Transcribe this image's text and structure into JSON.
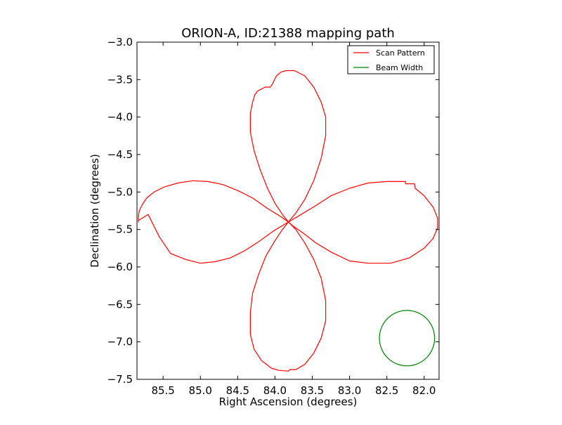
{
  "chart_data": {
    "type": "line",
    "title": "ORION-A, ID:21388 mapping path",
    "xlabel": "Right Ascension (degrees)",
    "ylabel": "Declination (degrees)",
    "xlim": [
      85.85,
      81.8
    ],
    "ylim": [
      -7.5,
      -3.0
    ],
    "x_inverted": true,
    "grid": false,
    "legend_position": "top-right",
    "xticks": [
      85.5,
      85.0,
      84.5,
      84.0,
      83.5,
      83.0,
      82.5,
      82.0
    ],
    "xtick_labels": [
      "85.5",
      "85.0",
      "84.5",
      "84.0",
      "83.5",
      "83.0",
      "82.5",
      "82.0"
    ],
    "yticks": [
      -3.0,
      -3.5,
      -4.0,
      -4.5,
      -5.0,
      -5.5,
      -6.0,
      -6.5,
      -7.0,
      -7.5
    ],
    "ytick_labels": [
      "−3.0",
      "−3.5",
      "−4.0",
      "−4.5",
      "−5.0",
      "−5.5",
      "−6.0",
      "−6.5",
      "−7.0",
      "−7.5"
    ],
    "series": [
      {
        "name": "Scan Pattern",
        "color": "#ff0000",
        "points": [
          [
            83.82,
            -5.4
          ],
          [
            83.9,
            -5.3
          ],
          [
            84.0,
            -5.15
          ],
          [
            84.1,
            -4.95
          ],
          [
            84.2,
            -4.7
          ],
          [
            84.28,
            -4.45
          ],
          [
            84.33,
            -4.2
          ],
          [
            84.33,
            -3.95
          ],
          [
            84.3,
            -3.8
          ],
          [
            84.27,
            -3.7
          ],
          [
            84.23,
            -3.65
          ],
          [
            84.13,
            -3.6
          ],
          [
            84.06,
            -3.6
          ],
          [
            84.03,
            -3.55
          ],
          [
            83.98,
            -3.45
          ],
          [
            83.92,
            -3.4
          ],
          [
            83.85,
            -3.38
          ],
          [
            83.74,
            -3.38
          ],
          [
            83.6,
            -3.45
          ],
          [
            83.48,
            -3.6
          ],
          [
            83.38,
            -3.8
          ],
          [
            83.32,
            -4.0
          ],
          [
            83.32,
            -4.25
          ],
          [
            83.38,
            -4.55
          ],
          [
            83.48,
            -4.85
          ],
          [
            83.6,
            -5.1
          ],
          [
            83.72,
            -5.28
          ],
          [
            83.82,
            -5.4
          ],
          [
            83.9,
            -5.5
          ],
          [
            84.0,
            -5.65
          ],
          [
            84.12,
            -5.85
          ],
          [
            84.22,
            -6.1
          ],
          [
            84.3,
            -6.35
          ],
          [
            84.33,
            -6.6
          ],
          [
            84.33,
            -6.9
          ],
          [
            84.28,
            -7.1
          ],
          [
            84.18,
            -7.25
          ],
          [
            84.05,
            -7.35
          ],
          [
            83.95,
            -7.38
          ],
          [
            83.82,
            -7.39
          ],
          [
            83.8,
            -7.37
          ],
          [
            83.72,
            -7.37
          ],
          [
            83.6,
            -7.3
          ],
          [
            83.48,
            -7.15
          ],
          [
            83.38,
            -6.95
          ],
          [
            83.32,
            -6.72
          ],
          [
            83.32,
            -6.45
          ],
          [
            83.38,
            -6.15
          ],
          [
            83.48,
            -5.9
          ],
          [
            83.6,
            -5.68
          ],
          [
            83.72,
            -5.5
          ],
          [
            83.82,
            -5.4
          ],
          [
            83.92,
            -5.33
          ],
          [
            84.1,
            -5.22
          ],
          [
            84.3,
            -5.08
          ],
          [
            84.5,
            -4.98
          ],
          [
            84.7,
            -4.9
          ],
          [
            84.9,
            -4.86
          ],
          [
            85.1,
            -4.85
          ],
          [
            85.3,
            -4.88
          ],
          [
            85.48,
            -4.93
          ],
          [
            85.62,
            -5.0
          ],
          [
            85.72,
            -5.08
          ],
          [
            85.78,
            -5.17
          ],
          [
            85.82,
            -5.25
          ],
          [
            85.83,
            -5.32
          ],
          [
            85.83,
            -5.4
          ],
          [
            85.83,
            -5.38
          ],
          [
            85.7,
            -5.3
          ],
          [
            85.65,
            -5.4
          ],
          [
            85.55,
            -5.6
          ],
          [
            85.4,
            -5.82
          ],
          [
            85.2,
            -5.9
          ],
          [
            85.0,
            -5.95
          ],
          [
            84.8,
            -5.93
          ],
          [
            84.6,
            -5.88
          ],
          [
            84.4,
            -5.78
          ],
          [
            84.2,
            -5.65
          ],
          [
            84.02,
            -5.52
          ],
          [
            83.82,
            -5.4
          ],
          [
            83.65,
            -5.3
          ],
          [
            83.45,
            -5.18
          ],
          [
            83.25,
            -5.05
          ],
          [
            83.0,
            -4.95
          ],
          [
            82.75,
            -4.88
          ],
          [
            82.5,
            -4.86
          ],
          [
            82.25,
            -4.86
          ],
          [
            82.25,
            -4.89
          ],
          [
            82.13,
            -4.89
          ],
          [
            82.12,
            -4.95
          ],
          [
            82.0,
            -5.05
          ],
          [
            81.88,
            -5.2
          ],
          [
            81.82,
            -5.35
          ],
          [
            81.82,
            -5.48
          ],
          [
            81.88,
            -5.62
          ],
          [
            82.0,
            -5.75
          ],
          [
            82.2,
            -5.88
          ],
          [
            82.45,
            -5.95
          ],
          [
            82.75,
            -5.95
          ],
          [
            83.0,
            -5.92
          ],
          [
            83.25,
            -5.8
          ],
          [
            83.45,
            -5.68
          ],
          [
            83.62,
            -5.55
          ],
          [
            83.75,
            -5.46
          ],
          [
            83.82,
            -5.4
          ]
        ]
      },
      {
        "name": "Beam Width",
        "color": "#008000",
        "shape": "circle",
        "center": [
          82.23,
          -6.95
        ],
        "radius_deg": 0.37
      }
    ]
  }
}
